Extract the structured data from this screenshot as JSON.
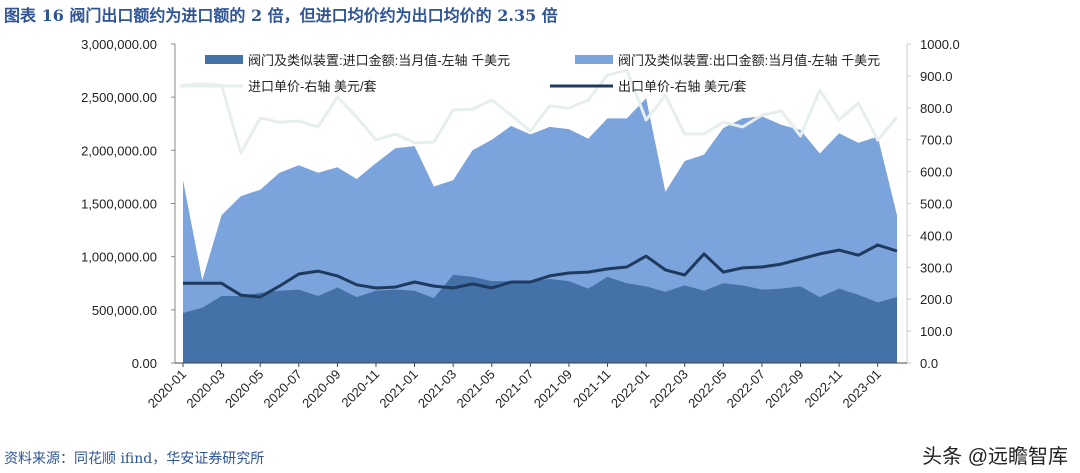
{
  "title": "图表 16 阀门出口额约为进口额的 2 倍，但进口均价约为出口均价的 2.35 倍",
  "source": "资料来源：同花顺 ifind，华安证券研究所",
  "watermark": "头条 @远瞻智库",
  "colors": {
    "import_area": "#4472a8",
    "export_area": "#7ba3dc",
    "import_price": "#e6efee",
    "export_price": "#1f3a5f"
  },
  "chart_data": {
    "type": "area",
    "title": "",
    "x": [
      "2020-01",
      "2020-02",
      "2020-03",
      "2020-04",
      "2020-05",
      "2020-06",
      "2020-07",
      "2020-08",
      "2020-09",
      "2020-10",
      "2020-11",
      "2020-12",
      "2021-01",
      "2021-02",
      "2021-03",
      "2021-04",
      "2021-05",
      "2021-06",
      "2021-07",
      "2021-08",
      "2021-09",
      "2021-10",
      "2021-11",
      "2021-12",
      "2022-01",
      "2022-02",
      "2022-03",
      "2022-04",
      "2022-05",
      "2022-06",
      "2022-07",
      "2022-08",
      "2022-09",
      "2022-10",
      "2022-11",
      "2022-12",
      "2023-01",
      "2023-02"
    ],
    "x_tick_labels": [
      "2020-01",
      "2020-03",
      "2020-05",
      "2020-07",
      "2020-09",
      "2020-11",
      "2021-01",
      "2021-03",
      "2021-05",
      "2021-07",
      "2021-09",
      "2021-11",
      "2022-01",
      "2022-03",
      "2022-05",
      "2022-07",
      "2022-09",
      "2022-11",
      "2023-01"
    ],
    "y_left": {
      "range": [
        0,
        3000000
      ],
      "ticks": [
        "0.00",
        "500,000.00",
        "1,000,000.00",
        "1,500,000.00",
        "2,000,000.00",
        "2,500,000.00",
        "3,000,000.00"
      ]
    },
    "y_right": {
      "range": [
        0,
        1000
      ],
      "ticks": [
        "0.0",
        "100.0",
        "200.0",
        "300.0",
        "400.0",
        "500.0",
        "600.0",
        "700.0",
        "800.0",
        "900.0",
        "1000.0"
      ]
    },
    "legend_placement": "top",
    "grid": false,
    "series": [
      {
        "name": "阀门及类似装置:出口金额:当月值-左轴 千美元",
        "type": "area",
        "axis": "left",
        "values": [
          1720000,
          780000,
          1390000,
          1570000,
          1630000,
          1790000,
          1860000,
          1790000,
          1840000,
          1730000,
          1880000,
          2020000,
          2040000,
          1660000,
          1720000,
          2000000,
          2100000,
          2230000,
          2150000,
          2220000,
          2200000,
          2110000,
          2300000,
          2300000,
          2490000,
          1610000,
          1900000,
          1960000,
          2210000,
          2300000,
          2320000,
          2240000,
          2190000,
          1970000,
          2160000,
          2070000,
          2130000,
          1390000
        ]
      },
      {
        "name": "阀门及类似装置:进口金额:当月值-左轴 千美元",
        "type": "area",
        "axis": "left",
        "values": [
          470000,
          520000,
          630000,
          630000,
          660000,
          680000,
          690000,
          630000,
          710000,
          620000,
          680000,
          690000,
          680000,
          610000,
          830000,
          810000,
          770000,
          770000,
          770000,
          790000,
          770000,
          700000,
          810000,
          750000,
          720000,
          670000,
          730000,
          680000,
          750000,
          730000,
          690000,
          700000,
          720000,
          620000,
          700000,
          640000,
          570000,
          620000
        ]
      },
      {
        "name": "进口单价-右轴 美元/套",
        "type": "line",
        "axis": "right",
        "values": [
          871,
          875,
          871,
          658,
          768,
          755,
          759,
          740,
          834,
          771,
          699,
          718,
          690,
          693,
          793,
          796,
          824,
          777,
          727,
          806,
          799,
          824,
          903,
          918,
          762,
          840,
          718,
          718,
          755,
          740,
          777,
          790,
          712,
          856,
          762,
          815,
          699,
          771
        ]
      },
      {
        "name": "出口单价-右轴 美元/套",
        "type": "line",
        "axis": "right",
        "values": [
          250,
          250,
          250,
          213,
          207,
          241,
          279,
          288,
          273,
          245,
          235,
          238,
          254,
          241,
          235,
          248,
          235,
          254,
          254,
          273,
          282,
          285,
          295,
          301,
          335,
          292,
          276,
          342,
          285,
          298,
          301,
          310,
          326,
          342,
          354,
          338,
          370,
          351
        ]
      }
    ]
  }
}
